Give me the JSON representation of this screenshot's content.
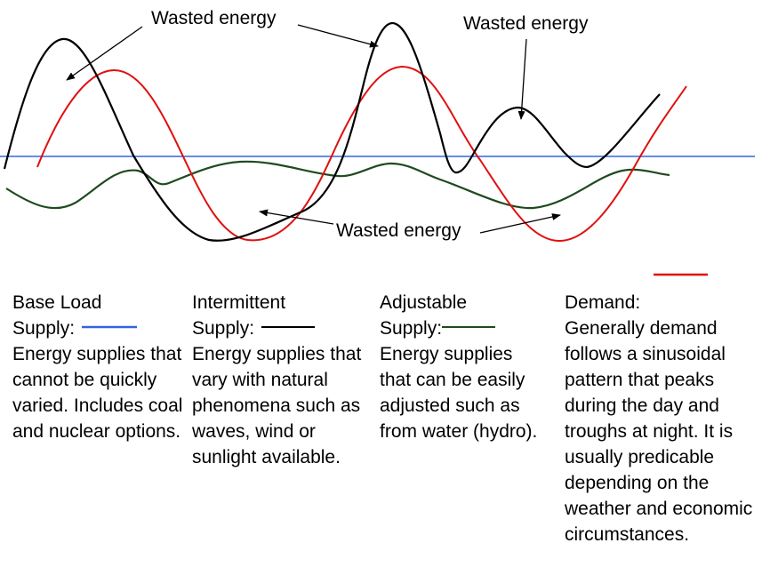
{
  "annotations": {
    "wasted_energy_1": "Wasted energy",
    "wasted_energy_2": "Wasted energy",
    "wasted_energy_3": "Wasted energy"
  },
  "colors": {
    "base_load": "#3366dd",
    "intermittent": "#000000",
    "adjustable": "#1f4a1f",
    "demand": "#e01010"
  },
  "legend": {
    "base_load": {
      "title_line1": "Base Load",
      "title_line2": "Supply:",
      "description": "Energy supplies that cannot be quickly varied. Includes coal and nuclear options."
    },
    "intermittent": {
      "title_line1": "Intermittent",
      "title_line2": "Supply:",
      "description": "Energy supplies that vary with natural phenomena such as waves, wind or sunlight available."
    },
    "adjustable": {
      "title_line1": "Adjustable",
      "title_line2": "Supply:",
      "description": "Energy supplies that can be easily adjusted such as from water (hydro)."
    },
    "demand": {
      "title": "Demand:",
      "description": "Generally demand follows a sinusoidal pattern that peaks during the day and troughs at night. It is usually predicable depending on the weather and economic circumstances."
    }
  }
}
